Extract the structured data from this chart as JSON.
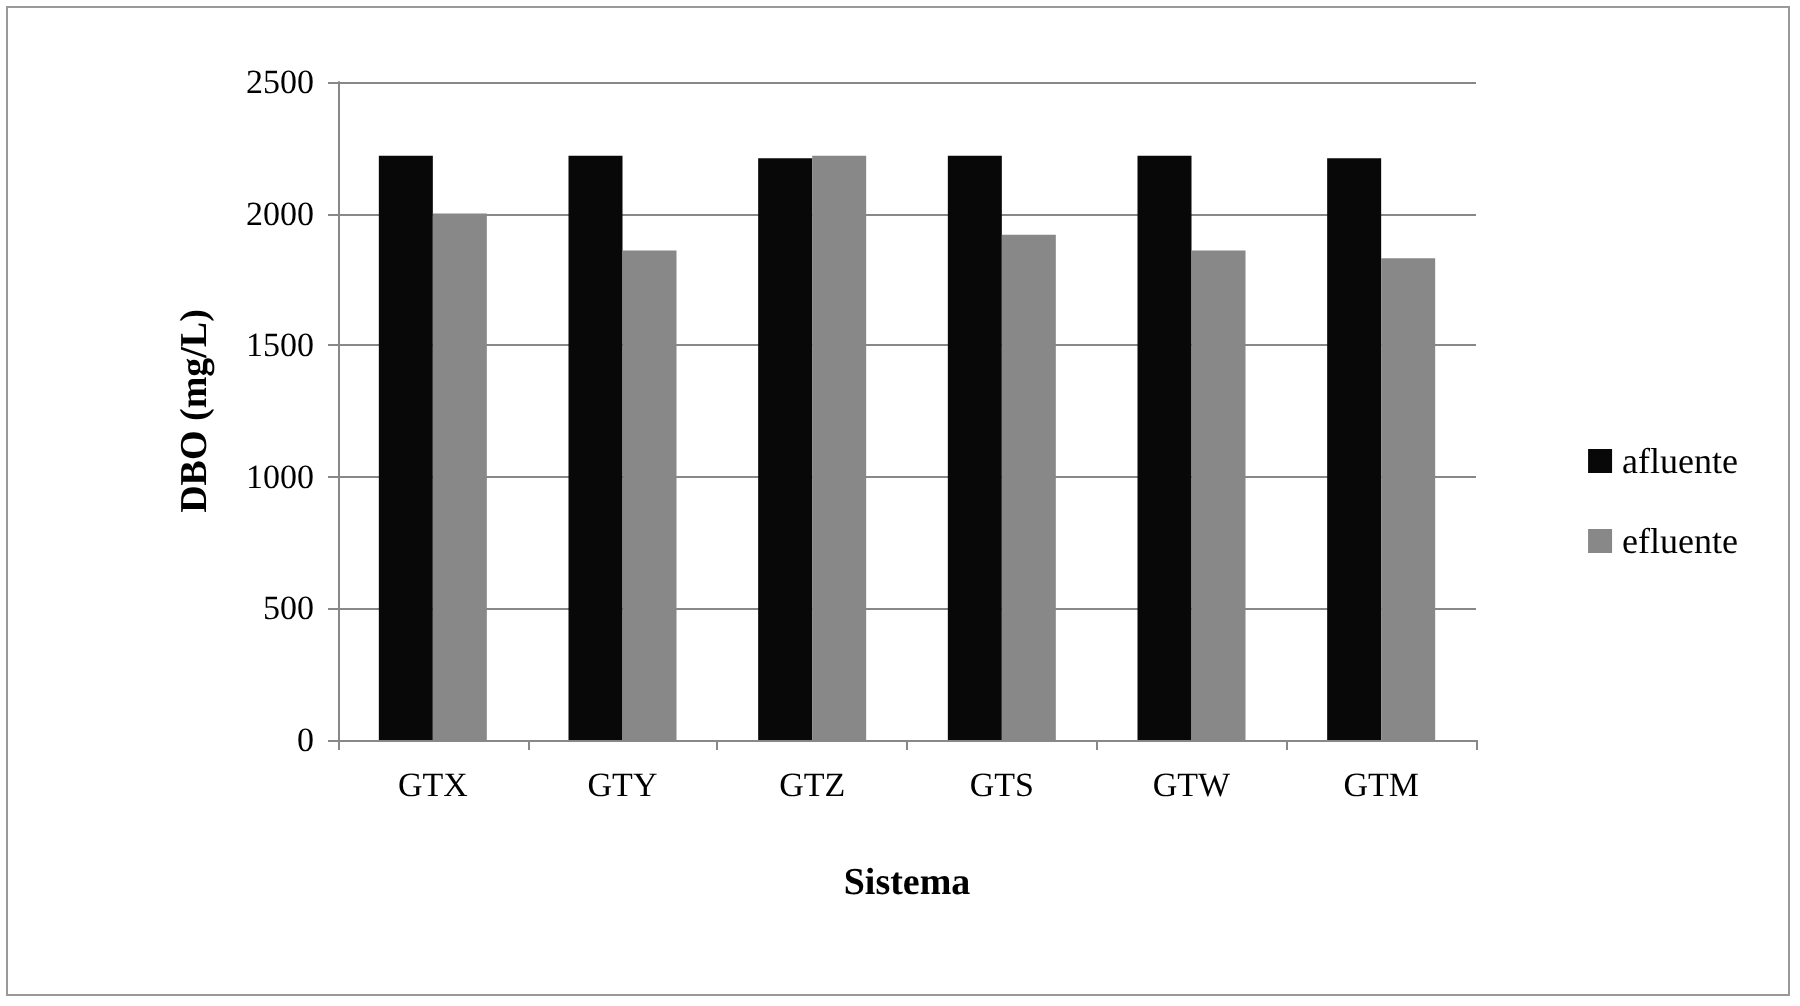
{
  "chart_data": {
    "type": "bar",
    "xlabel": "Sistema",
    "ylabel": "DBO (mg/L)",
    "categories": [
      "GTX",
      "GTY",
      "GTZ",
      "GTS",
      "GTW",
      "GTM"
    ],
    "series": [
      {
        "name": "afluente",
        "color": "#080808",
        "values": [
          2220,
          2220,
          2210,
          2220,
          2220,
          2210
        ]
      },
      {
        "name": "efluente",
        "color": "#888888",
        "values": [
          2000,
          1860,
          2220,
          1920,
          1860,
          1830
        ]
      }
    ],
    "ylim": [
      0,
      2500
    ],
    "yticks": [
      0,
      500,
      1000,
      1500,
      2000,
      2500
    ],
    "grid": "y",
    "legend": "right"
  }
}
